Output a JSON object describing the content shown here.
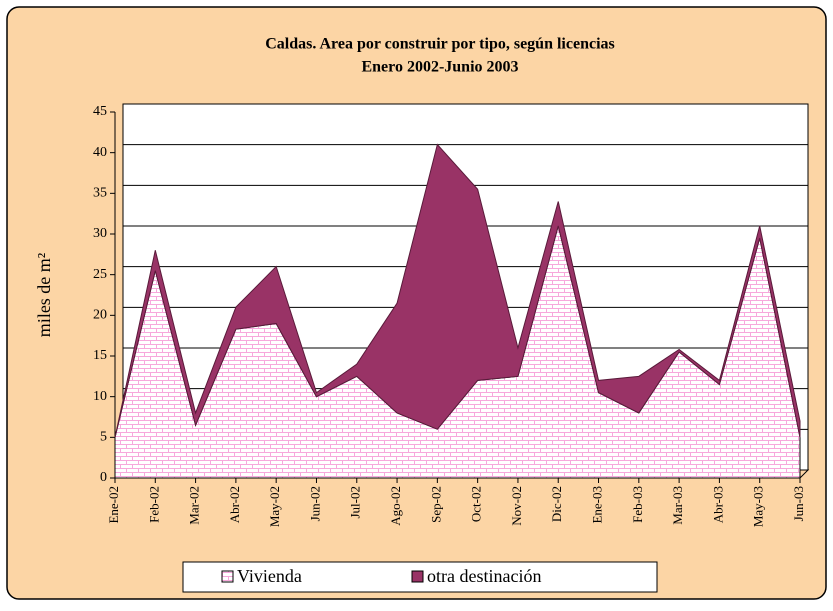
{
  "chart_data": {
    "type": "stacked_area",
    "title": "Caldas. Area por construir por tipo, según licencias",
    "subtitle": "Enero 2002-Junio 2003",
    "y_label": "miles de m²",
    "categories": [
      "Ene-02",
      "Feb-02",
      "Mar-02",
      "Abr-02",
      "May-02",
      "Jun-02",
      "Jul-02",
      "Ago-02",
      "Sep-02",
      "Oct-02",
      "Nov-02",
      "Dic-02",
      "Ene-03",
      "Feb-03",
      "Mar-03",
      "Abr-03",
      "May-03",
      "Jun-03"
    ],
    "series": [
      {
        "name": "Vivienda",
        "color": "#f7a8dc",
        "values": [
          5,
          25.5,
          6.5,
          18.3,
          19,
          10,
          12.5,
          8,
          6,
          12,
          12.5,
          31,
          10.5,
          8,
          15.5,
          11.5,
          29.5,
          5
        ]
      },
      {
        "name": "otra destinación",
        "color": "#993366",
        "values": [
          0,
          2.5,
          1.5,
          2.7,
          7,
          0.5,
          1.5,
          13.5,
          35,
          23.5,
          3.5,
          3,
          1.5,
          4.5,
          0.3,
          0.5,
          1.5,
          2
        ]
      }
    ],
    "ylim": [
      0,
      45
    ],
    "yticks": [
      0,
      5,
      10,
      15,
      20,
      25,
      30,
      35,
      40,
      45
    ],
    "grid": true,
    "legend": "bottom"
  }
}
